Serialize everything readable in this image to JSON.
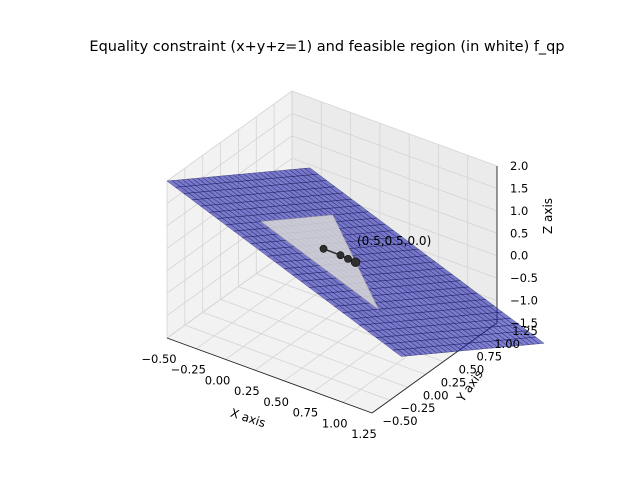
{
  "chart_data": {
    "type": "surface3d",
    "title": "Equality constraint (x+y+z=1) and feasible region (in white) f_qp",
    "xlabel": "X axis",
    "ylabel": "Y axis",
    "zlabel": "Z axis",
    "x_ticks": [
      "−0.50",
      "−0.25",
      "0.00",
      "0.25",
      "0.50",
      "0.75",
      "1.00",
      "1.25"
    ],
    "y_ticks": [
      "−0.50",
      "−0.25",
      "0.00",
      "0.25",
      "0.50",
      "0.75",
      "1.00",
      "1.25"
    ],
    "z_ticks": [
      "−1.5",
      "−1.0",
      "−0.5",
      "0.0",
      "0.5",
      "1.0",
      "1.5",
      "2.0"
    ],
    "xlim": [
      -0.5,
      1.25
    ],
    "ylim": [
      -0.5,
      1.25
    ],
    "zlim": [
      -1.5,
      2.0
    ],
    "grid": true,
    "plane": {
      "equation": "x+y+z=1",
      "x_range": [
        -0.5,
        1.5
      ],
      "y_range": [
        -0.5,
        1.5
      ],
      "color": "#2b2bb5"
    },
    "feasible_region": {
      "vertices": [
        [
          1,
          0,
          0
        ],
        [
          0,
          1,
          0
        ],
        [
          0,
          0,
          1
        ]
      ],
      "color": "#d8d8d8"
    },
    "path_points": [
      {
        "x": 0.33,
        "y": 0.33,
        "z": 0.33
      },
      {
        "x": 0.42,
        "y": 0.42,
        "z": 0.17
      },
      {
        "x": 0.46,
        "y": 0.46,
        "z": 0.08
      },
      {
        "x": 0.5,
        "y": 0.5,
        "z": 0.0
      }
    ],
    "annotation": "(0.5,0.5,0.0)"
  }
}
